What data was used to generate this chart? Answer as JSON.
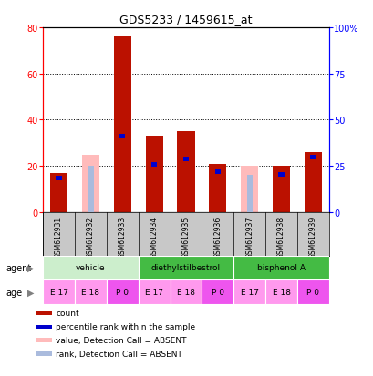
{
  "title": "GDS5233 / 1459615_at",
  "samples": [
    "GSM612931",
    "GSM612932",
    "GSM612933",
    "GSM612934",
    "GSM612935",
    "GSM612936",
    "GSM612937",
    "GSM612938",
    "GSM612939"
  ],
  "count_values": [
    17,
    0,
    76,
    33,
    35,
    21,
    0,
    20,
    26
  ],
  "rank_values": [
    18.5,
    0,
    41,
    26,
    29,
    22,
    0,
    20.5,
    30
  ],
  "absent_count": [
    0,
    25,
    0,
    0,
    0,
    0,
    20,
    0,
    0
  ],
  "absent_rank": [
    0,
    25,
    0,
    0,
    0,
    0,
    20,
    0,
    0
  ],
  "detection_absent": [
    false,
    true,
    false,
    false,
    false,
    false,
    true,
    false,
    false
  ],
  "ages": [
    "E 17",
    "E 18",
    "P 0",
    "E 17",
    "E 18",
    "P 0",
    "E 17",
    "E 18",
    "P 0"
  ],
  "age_colors": [
    "#FF99EE",
    "#FF99EE",
    "#EE55EE",
    "#FF99EE",
    "#FF99EE",
    "#EE55EE",
    "#FF99EE",
    "#FF99EE",
    "#EE55EE"
  ],
  "ylim_left": [
    0,
    80
  ],
  "ylim_right": [
    0,
    100
  ],
  "yticks_left": [
    0,
    20,
    40,
    60,
    80
  ],
  "yticks_right": [
    0,
    25,
    50,
    75,
    100
  ],
  "color_count": "#BB1100",
  "color_rank": "#0000CC",
  "color_absent_count": "#FFBBBB",
  "color_absent_rank": "#AABBDD",
  "agent_groups": [
    {
      "label": "vehicle",
      "start": 0,
      "end": 2,
      "color": "#CCEECC"
    },
    {
      "label": "diethylstilbestrol",
      "start": 3,
      "end": 5,
      "color": "#44BB44"
    },
    {
      "label": "bisphenol A",
      "start": 6,
      "end": 8,
      "color": "#44BB44"
    }
  ],
  "legend_items": [
    {
      "color": "#BB1100",
      "label": "count"
    },
    {
      "color": "#0000CC",
      "label": "percentile rank within the sample"
    },
    {
      "color": "#FFBBBB",
      "label": "value, Detection Call = ABSENT"
    },
    {
      "color": "#AABBDD",
      "label": "rank, Detection Call = ABSENT"
    }
  ]
}
